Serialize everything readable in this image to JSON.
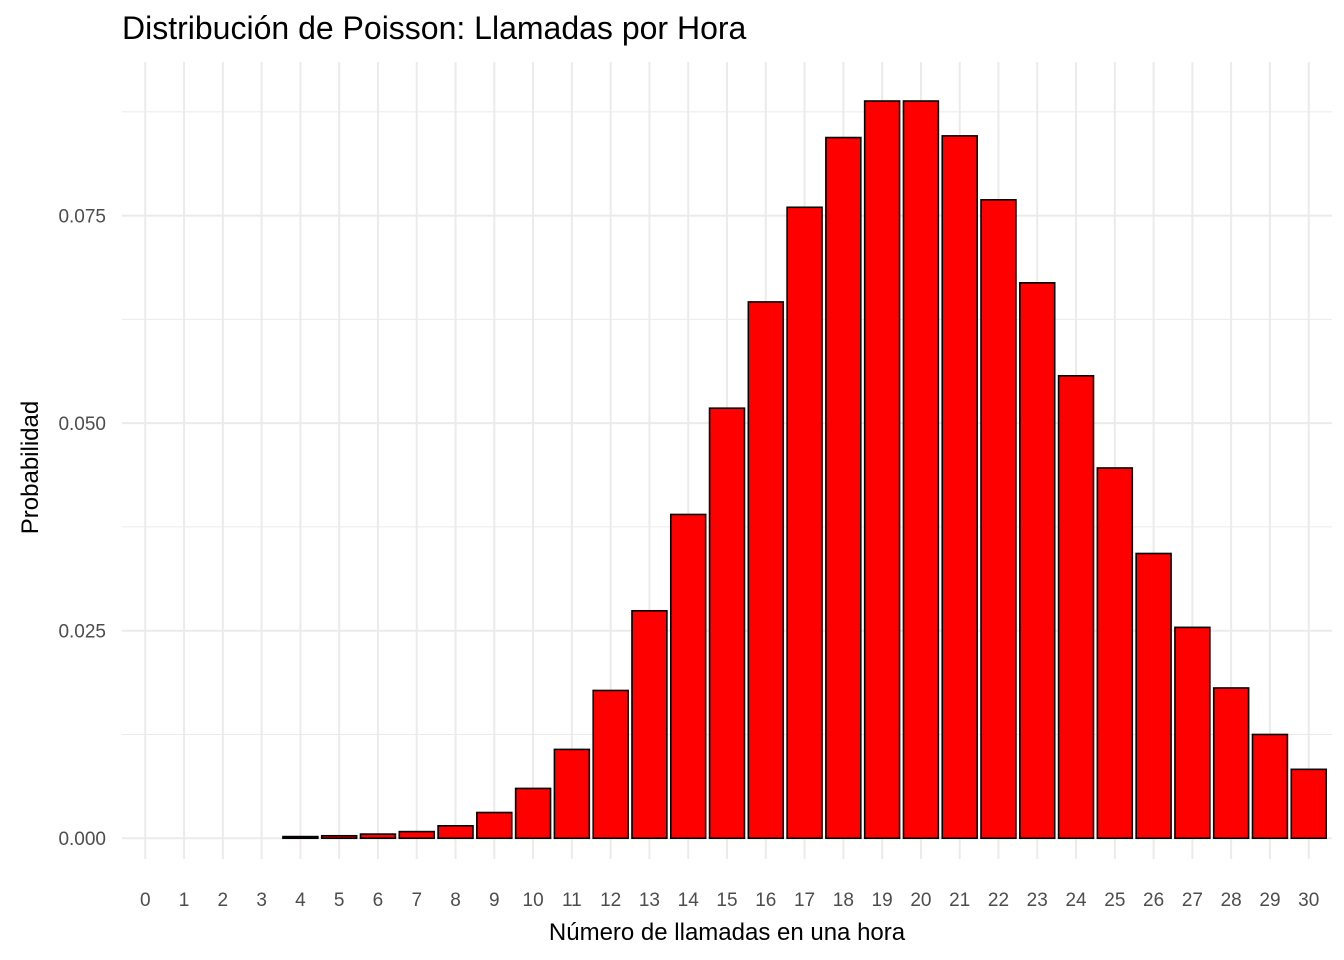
{
  "chart_data": {
    "type": "bar",
    "title": "Distribución de Poisson: Llamadas por Hora",
    "xlabel": "Número de llamadas en una hora",
    "ylabel": "Probabilidad",
    "categories": [
      "0",
      "1",
      "2",
      "3",
      "4",
      "5",
      "6",
      "7",
      "8",
      "9",
      "10",
      "11",
      "12",
      "13",
      "14",
      "15",
      "16",
      "17",
      "18",
      "19",
      "20",
      "21",
      "22",
      "23",
      "24",
      "25",
      "26",
      "27",
      "28",
      "29",
      "30"
    ],
    "values": [
      0.0,
      0.0,
      0.0,
      0.0,
      0.0002,
      0.0003,
      0.0005,
      0.0008,
      0.0015,
      0.0031,
      0.006,
      0.0107,
      0.0178,
      0.0274,
      0.039,
      0.0518,
      0.0646,
      0.076,
      0.0844,
      0.0888,
      0.0888,
      0.0846,
      0.0769,
      0.0669,
      0.0557,
      0.0446,
      0.0343,
      0.0254,
      0.0181,
      0.0125,
      0.0083
    ],
    "ylim": [
      -0.0025,
      0.0935
    ],
    "yticks": [
      0.0,
      0.025,
      0.05,
      0.075
    ],
    "ytick_labels": [
      "0.000",
      "0.025",
      "0.050",
      "0.075"
    ],
    "bar_fill": "#ff0000",
    "bar_stroke": "#000000",
    "grid": true,
    "grid_color": "#ebebeb",
    "legend": "none"
  }
}
